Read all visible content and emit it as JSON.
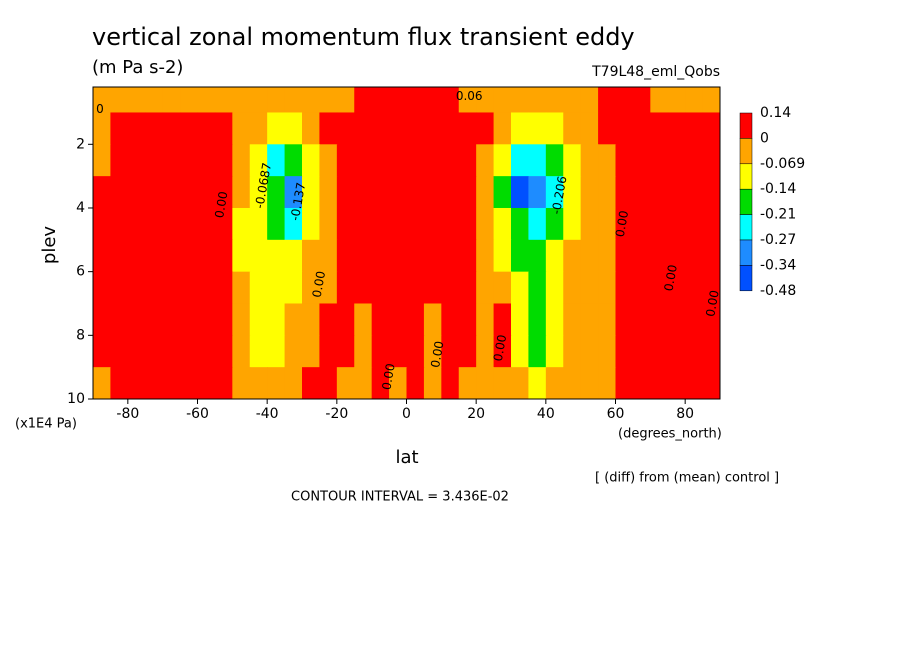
{
  "chart_data": {
    "type": "contour",
    "title": "vertical zonal momentum flux transient eddy",
    "subtitle": "(m Pa s-2)",
    "run_label": "T79L48_eml_Qobs",
    "x_label": "lat",
    "x_units": "(degrees_north)",
    "y_label": "plev",
    "y_units": "(x1E4 Pa)",
    "note": "[ (diff) from (mean) control ]",
    "contour_interval": "CONTOUR INTERVAL = 3.436E-02",
    "xlim": [
      -90,
      90
    ],
    "xticks": [
      -80,
      -60,
      -40,
      -20,
      0,
      20,
      40,
      60,
      80
    ],
    "ylim": [
      0.2,
      10
    ],
    "y_reversed": true,
    "yticks": [
      2,
      4,
      6,
      8,
      10
    ],
    "levels": [
      0.14,
      0,
      -0.069,
      -0.14,
      -0.21,
      -0.27,
      -0.34,
      -0.48
    ],
    "colors": [
      "#ff0000",
      "#ffa500",
      "#ffff00",
      "#00dc00",
      "#00ffff",
      "#1e8cff",
      "#0050ff"
    ],
    "x": [
      -87.5,
      -82.5,
      -77.5,
      -72.5,
      -67.5,
      -62.5,
      -57.5,
      -52.5,
      -47.5,
      -42.5,
      -37.5,
      -32.5,
      -27.5,
      -22.5,
      -17.5,
      -12.5,
      -7.5,
      -2.5,
      2.5,
      7.5,
      12.5,
      17.5,
      22.5,
      27.5,
      32.5,
      37.5,
      42.5,
      47.5,
      52.5,
      57.5,
      62.5,
      67.5,
      72.5,
      77.5,
      82.5,
      87.5
    ],
    "y": [
      0.5,
      1.5,
      2.5,
      3.5,
      4.5,
      5.5,
      6.5,
      7.5,
      8.5,
      9.5
    ],
    "z": [
      [
        -0.03,
        -0.03,
        -0.03,
        -0.03,
        -0.03,
        -0.03,
        -0.03,
        -0.03,
        -0.03,
        -0.03,
        -0.03,
        -0.03,
        -0.03,
        -0.03,
        -0.03,
        0.02,
        0.02,
        0.02,
        0.02,
        0.02,
        0.02,
        -0.03,
        -0.03,
        -0.03,
        -0.03,
        -0.03,
        -0.03,
        -0.03,
        -0.03,
        0.02,
        0.02,
        0.02,
        -0.03,
        -0.03,
        -0.03,
        -0.03
      ],
      [
        -0.03,
        0.02,
        0.02,
        0.02,
        0.02,
        0.02,
        0.02,
        0.02,
        -0.03,
        -0.03,
        -0.1,
        -0.1,
        -0.03,
        0.02,
        0.02,
        0.02,
        0.02,
        0.02,
        0.02,
        0.02,
        0.02,
        0.02,
        0.02,
        -0.03,
        -0.1,
        -0.1,
        -0.1,
        -0.03,
        -0.03,
        0.02,
        0.02,
        0.02,
        0.02,
        0.02,
        0.02,
        0.02
      ],
      [
        -0.03,
        0.02,
        0.02,
        0.02,
        0.02,
        0.02,
        0.02,
        0.02,
        -0.03,
        -0.1,
        -0.24,
        -0.17,
        -0.1,
        -0.03,
        0.02,
        0.02,
        0.02,
        0.02,
        0.02,
        0.02,
        0.02,
        0.02,
        -0.03,
        -0.1,
        -0.24,
        -0.24,
        -0.17,
        -0.1,
        -0.03,
        -0.03,
        0.02,
        0.02,
        0.02,
        0.02,
        0.02,
        0.02
      ],
      [
        0.02,
        0.02,
        0.02,
        0.02,
        0.02,
        0.02,
        0.02,
        0.02,
        -0.03,
        -0.1,
        -0.17,
        -0.3,
        -0.1,
        -0.03,
        0.02,
        0.02,
        0.02,
        0.02,
        0.02,
        0.02,
        0.02,
        0.02,
        -0.03,
        -0.17,
        -0.4,
        -0.3,
        -0.24,
        -0.1,
        -0.03,
        -0.03,
        0.02,
        0.02,
        0.02,
        0.02,
        0.02,
        0.02
      ],
      [
        0.02,
        0.02,
        0.02,
        0.02,
        0.02,
        0.02,
        0.02,
        0.02,
        -0.1,
        -0.1,
        -0.17,
        -0.24,
        -0.1,
        -0.03,
        0.02,
        0.02,
        0.02,
        0.02,
        0.02,
        0.02,
        0.02,
        0.02,
        -0.03,
        -0.1,
        -0.17,
        -0.24,
        -0.17,
        -0.1,
        -0.03,
        -0.03,
        0.02,
        0.02,
        0.02,
        0.02,
        0.02,
        0.02
      ],
      [
        0.02,
        0.02,
        0.02,
        0.02,
        0.02,
        0.02,
        0.02,
        0.02,
        -0.1,
        -0.1,
        -0.1,
        -0.1,
        -0.03,
        -0.03,
        0.02,
        0.02,
        0.02,
        0.02,
        0.02,
        0.02,
        0.02,
        0.02,
        -0.03,
        -0.1,
        -0.17,
        -0.17,
        -0.1,
        -0.03,
        -0.03,
        -0.03,
        0.02,
        0.02,
        0.02,
        0.02,
        0.02,
        0.02
      ],
      [
        0.02,
        0.02,
        0.02,
        0.02,
        0.02,
        0.02,
        0.02,
        0.02,
        -0.03,
        -0.1,
        -0.1,
        -0.1,
        -0.03,
        -0.03,
        0.02,
        0.02,
        0.02,
        0.02,
        0.02,
        0.02,
        0.02,
        0.02,
        -0.03,
        -0.03,
        -0.1,
        -0.17,
        -0.1,
        -0.03,
        -0.03,
        -0.03,
        0.02,
        0.02,
        0.02,
        0.02,
        0.02,
        0.02
      ],
      [
        0.02,
        0.02,
        0.02,
        0.02,
        0.02,
        0.02,
        0.02,
        0.02,
        -0.03,
        -0.1,
        -0.1,
        -0.03,
        -0.03,
        0.02,
        0.02,
        -0.03,
        0.02,
        0.02,
        0.02,
        -0.03,
        0.02,
        0.02,
        -0.03,
        0.02,
        -0.1,
        -0.17,
        -0.1,
        -0.03,
        -0.03,
        -0.03,
        0.02,
        0.02,
        0.02,
        0.02,
        0.02,
        0.02
      ],
      [
        0.02,
        0.02,
        0.02,
        0.02,
        0.02,
        0.02,
        0.02,
        0.02,
        -0.03,
        -0.1,
        -0.1,
        -0.03,
        -0.03,
        0.02,
        0.02,
        -0.03,
        0.02,
        0.02,
        0.02,
        -0.03,
        0.02,
        0.02,
        -0.03,
        0.02,
        -0.1,
        -0.17,
        -0.1,
        -0.03,
        -0.03,
        -0.03,
        0.02,
        0.02,
        0.02,
        0.02,
        0.02,
        0.02
      ],
      [
        -0.03,
        0.02,
        0.02,
        0.02,
        0.02,
        0.02,
        0.02,
        0.02,
        -0.03,
        -0.03,
        -0.03,
        -0.03,
        0.02,
        0.02,
        -0.03,
        -0.03,
        0.02,
        -0.03,
        0.02,
        -0.03,
        0.02,
        -0.03,
        -0.03,
        -0.03,
        -0.03,
        -0.1,
        -0.03,
        -0.03,
        -0.03,
        -0.03,
        0.02,
        0.02,
        0.02,
        0.02,
        0.02,
        0.02
      ]
    ],
    "contour_labels": [
      {
        "text": "0.06",
        "lat": 18,
        "plev": 0.5
      },
      {
        "text": "0",
        "lat": -88,
        "plev": 0.9
      },
      {
        "text": "-0.0687",
        "lat": -41,
        "plev": 3.3
      },
      {
        "text": "-0.137",
        "lat": -31,
        "plev": 3.8
      },
      {
        "text": "0.00",
        "lat": -53,
        "plev": 3.9
      },
      {
        "text": "0.00",
        "lat": -25,
        "plev": 6.4
      },
      {
        "text": "0.00",
        "lat": -5,
        "plev": 9.3
      },
      {
        "text": "0.00",
        "lat": 9,
        "plev": 8.6
      },
      {
        "text": "0.00",
        "lat": 27,
        "plev": 8.4
      },
      {
        "text": "-0.206",
        "lat": 44,
        "plev": 3.6
      },
      {
        "text": "0.00",
        "lat": 62,
        "plev": 4.5
      },
      {
        "text": "0.00",
        "lat": 76,
        "plev": 6.2
      },
      {
        "text": "0.00",
        "lat": 88,
        "plev": 7
      }
    ]
  }
}
